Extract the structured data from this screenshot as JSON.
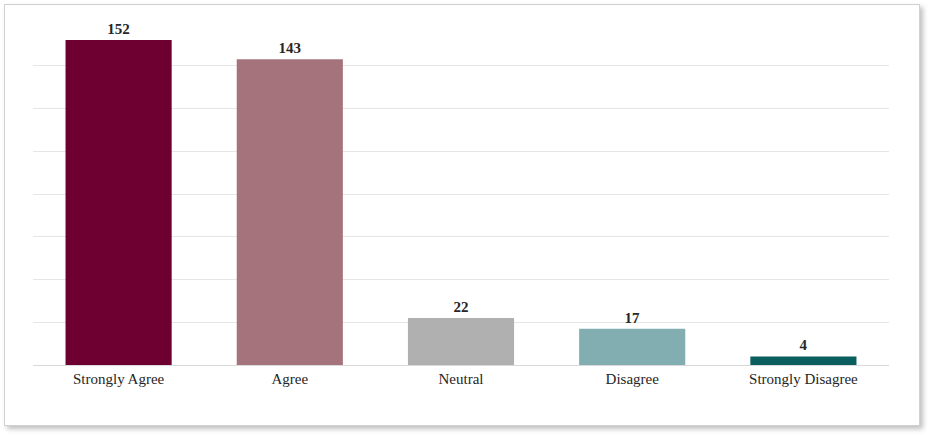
{
  "chart_data": {
    "type": "bar",
    "categories": [
      "Strongly Agree",
      "Agree",
      "Neutral",
      "Disagree",
      "Strongly Disagree"
    ],
    "values": [
      152,
      143,
      22,
      17,
      4
    ],
    "colors": [
      "#6d0030",
      "#a5737c",
      "#b0b0b0",
      "#82aeb1",
      "#0b5e5e"
    ],
    "ylim": [
      0,
      160
    ],
    "yticks": [
      0,
      20,
      40,
      60,
      80,
      100,
      120,
      140,
      160
    ],
    "grid": true,
    "data_labels": true,
    "tick_labels": "x"
  }
}
